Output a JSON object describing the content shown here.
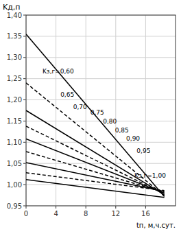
{
  "chart_data": {
    "type": "line",
    "x_label": "tп, м,ч.сут.",
    "y_label": "Kд,п",
    "x": [
      0,
      18.5
    ],
    "color": "#000000",
    "series": [
      {
        "values": [
          1.355,
          0.972
        ],
        "line_style": "solid"
      },
      {
        "values": [
          1.24,
          0.974
        ],
        "line_style": "dashed"
      },
      {
        "values": [
          1.175,
          0.976
        ],
        "line_style": "solid"
      },
      {
        "values": [
          1.138,
          0.978
        ],
        "line_style": "dashed"
      },
      {
        "values": [
          1.108,
          0.98
        ],
        "line_style": "solid"
      },
      {
        "values": [
          1.078,
          0.982
        ],
        "line_style": "dashed"
      },
      {
        "values": [
          1.052,
          0.984
        ],
        "line_style": "solid"
      },
      {
        "values": [
          1.028,
          0.986
        ],
        "line_style": "dashed"
      },
      {
        "values": [
          1.012,
          0.97
        ],
        "line_style": "solid"
      }
    ],
    "annotations": [
      {
        "text": "Kз,г=0,60",
        "x": 2.2,
        "y": 1.268
      },
      {
        "text": "0,65",
        "x": 4.6,
        "y": 1.212
      },
      {
        "text": "0,70",
        "x": 6.3,
        "y": 1.183
      },
      {
        "text": "0,75",
        "x": 8.6,
        "y": 1.17
      },
      {
        "text": "0,80",
        "x": 10.3,
        "y": 1.149
      },
      {
        "text": "0,85",
        "x": 11.9,
        "y": 1.128
      },
      {
        "text": "0,90",
        "x": 13.4,
        "y": 1.108
      },
      {
        "text": "0,95",
        "x": 14.8,
        "y": 1.08
      },
      {
        "text": "Kз,г=1,00",
        "x": 14.5,
        "y": 1.022
      }
    ],
    "xlim": [
      0,
      20
    ],
    "ylim": [
      0.95,
      1.4
    ],
    "xticks": [
      0,
      4,
      8,
      12,
      16
    ],
    "yticks": [
      {
        "value": 0.95,
        "label": "0,95"
      },
      {
        "value": 1.0,
        "label": "1,00"
      },
      {
        "value": 1.05,
        "label": "1,05"
      },
      {
        "value": 1.1,
        "label": "1,10"
      },
      {
        "value": 1.15,
        "label": "1,15"
      },
      {
        "value": 1.2,
        "label": "1,20"
      },
      {
        "value": 1.25,
        "label": "1,25"
      },
      {
        "value": 1.3,
        "label": "1,30"
      },
      {
        "value": 1.35,
        "label": "1,35"
      },
      {
        "value": 1.4,
        "label": "1,40"
      }
    ],
    "grid": true
  }
}
